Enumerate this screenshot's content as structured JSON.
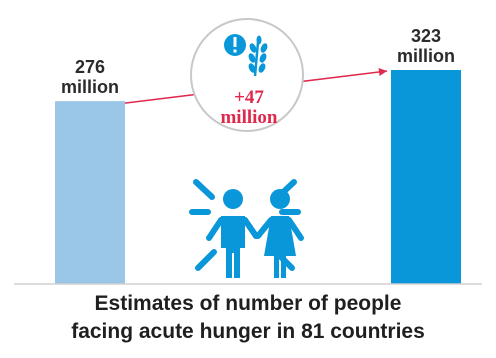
{
  "chart_data": {
    "type": "bar",
    "categories": [
      "",
      ""
    ],
    "values": [
      276,
      323
    ],
    "value_labels": [
      {
        "number": "276",
        "unit": "million"
      },
      {
        "number": "323",
        "unit": "million"
      }
    ],
    "bar_colors": [
      "#9ac6e8",
      "#0a97d9"
    ],
    "change": {
      "number": "+47",
      "unit": "million"
    },
    "arrow_color": "#e0284d",
    "title_lines": [
      "Estimates of number of people",
      "facing acute hunger in 81 countries"
    ],
    "ylim": [
      0,
      350
    ],
    "grid": false,
    "icons": [
      "alert-icon",
      "wheat-icon",
      "people-icon"
    ],
    "icon_color": "#0a97d9"
  }
}
